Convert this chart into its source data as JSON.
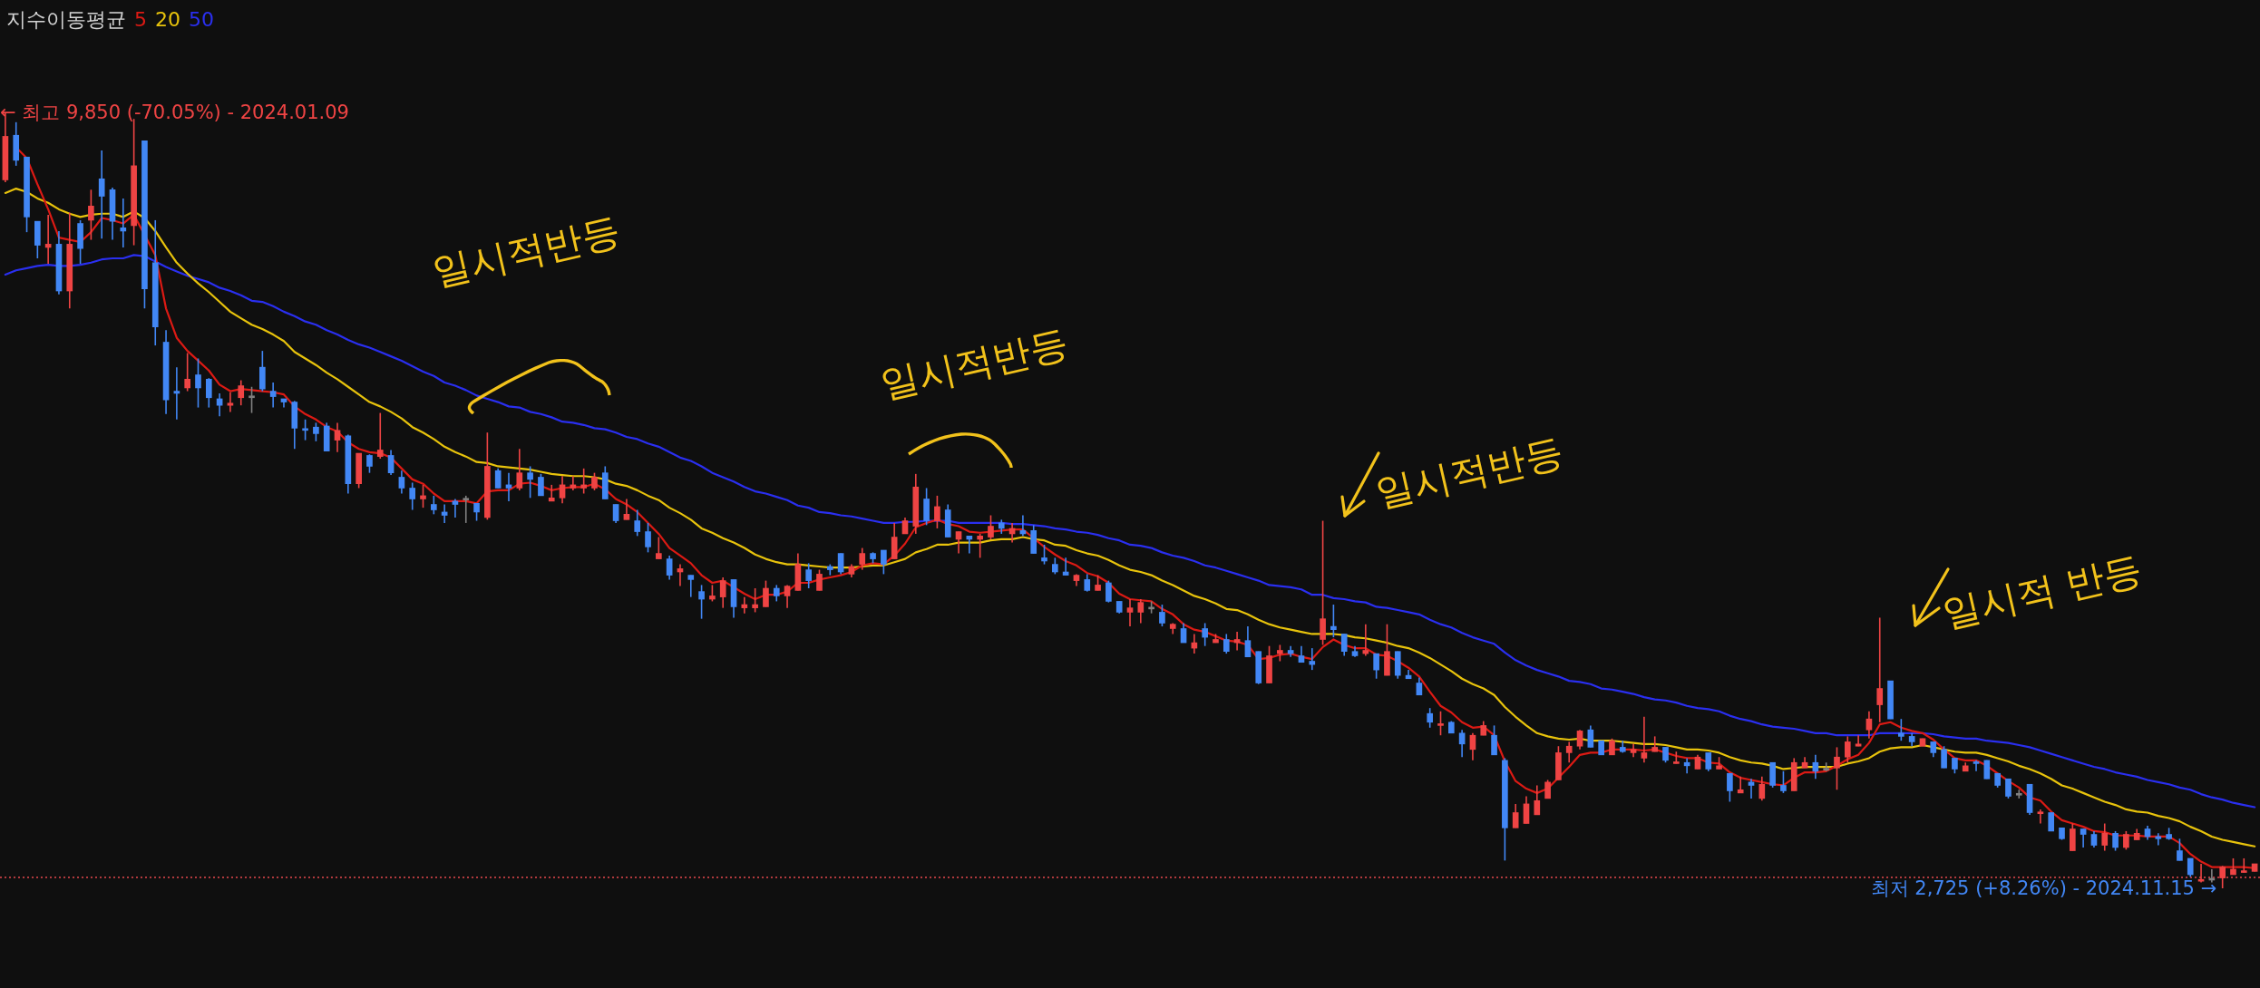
{
  "chart_data": {
    "type": "candlestick",
    "legend_title": "지수이동평균",
    "marker": "none",
    "grid": false,
    "tick_labels": false,
    "categories": [
      null,
      null,
      null,
      null,
      null,
      null,
      null,
      null,
      null,
      null,
      null,
      null,
      null,
      null,
      null,
      null,
      null,
      null,
      null,
      null,
      null,
      null,
      null,
      null,
      null,
      null,
      null,
      null,
      null,
      null,
      null,
      null,
      null,
      null,
      null,
      null,
      null,
      null,
      null,
      null,
      null,
      null,
      null,
      null,
      null,
      null,
      null,
      null,
      null,
      null,
      null,
      null,
      null,
      null,
      null,
      null,
      null,
      null,
      null,
      null,
      null,
      null,
      null,
      null,
      null,
      null,
      null,
      null,
      null,
      null,
      null,
      null,
      null,
      null,
      null,
      null,
      null,
      null,
      null,
      null,
      null,
      null,
      null,
      null,
      null,
      null,
      null,
      null,
      null,
      null,
      null,
      null,
      null,
      null,
      null,
      null,
      null,
      null,
      null,
      null,
      null,
      null,
      null,
      null,
      null,
      null,
      null,
      null,
      null,
      null,
      null,
      null,
      null,
      null,
      null,
      null,
      null,
      null,
      null,
      null,
      null,
      null,
      null,
      null,
      null,
      null,
      null,
      null,
      null,
      null,
      null,
      null,
      null,
      null,
      null,
      null,
      null,
      null,
      null,
      null,
      null,
      null,
      null,
      null,
      null,
      null,
      null,
      null,
      null,
      null,
      null,
      null,
      null,
      null,
      null,
      null,
      null,
      null,
      null,
      null,
      null,
      null,
      null,
      null,
      null,
      null,
      null,
      null,
      null,
      null,
      null,
      null,
      null,
      null,
      null,
      null,
      null,
      null,
      null,
      null,
      null,
      null,
      null,
      null,
      null,
      null,
      null,
      null,
      null,
      null,
      null,
      null,
      null,
      null,
      null,
      null,
      null,
      null,
      null,
      null,
      null,
      null,
      null,
      null,
      null,
      null,
      null,
      null,
      null,
      null,
      null
    ],
    "ohlc": [
      [
        9230,
        9850,
        9210,
        9630
      ],
      [
        9640,
        9760,
        9360,
        9410
      ],
      [
        9440,
        9440,
        8750,
        8890
      ],
      [
        8850,
        8850,
        8510,
        8630
      ],
      [
        8610,
        8910,
        8460,
        8640
      ],
      [
        8640,
        8760,
        8180,
        8210
      ],
      [
        8210,
        8930,
        8050,
        8640
      ],
      [
        8830,
        8860,
        8460,
        8600
      ],
      [
        8860,
        9140,
        8680,
        8990
      ],
      [
        9240,
        9500,
        8690,
        9080
      ],
      [
        9140,
        9160,
        8680,
        8850
      ],
      [
        8790,
        9060,
        8610,
        8760
      ],
      [
        8810,
        9790,
        8630,
        9360
      ],
      [
        9590,
        9590,
        8050,
        8230
      ],
      [
        8470,
        8860,
        7710,
        7880
      ],
      [
        7740,
        7850,
        7080,
        7210
      ],
      [
        7290,
        7510,
        7030,
        7270
      ],
      [
        7320,
        7640,
        7290,
        7400
      ],
      [
        7440,
        7590,
        7140,
        7320
      ],
      [
        7400,
        7410,
        7140,
        7230
      ],
      [
        7220,
        7270,
        7060,
        7160
      ],
      [
        7160,
        7280,
        7100,
        7180
      ],
      [
        7230,
        7390,
        7160,
        7340
      ],
      [
        7230,
        7330,
        7090,
        7230
      ],
      [
        7510,
        7660,
        7290,
        7310
      ],
      [
        7290,
        7370,
        7140,
        7240
      ],
      [
        7220,
        7220,
        7140,
        7190
      ],
      [
        7190,
        7200,
        6760,
        6950
      ],
      [
        6940,
        7030,
        6840,
        6930
      ],
      [
        6960,
        7000,
        6830,
        6900
      ],
      [
        6970,
        7000,
        6740,
        6740
      ],
      [
        6840,
        7000,
        6730,
        6930
      ],
      [
        6880,
        6890,
        6350,
        6440
      ],
      [
        6440,
        6720,
        6400,
        6720
      ],
      [
        6700,
        6710,
        6540,
        6600
      ],
      [
        6690,
        7090,
        6670,
        6750
      ],
      [
        6700,
        6750,
        6520,
        6540
      ],
      [
        6500,
        6560,
        6350,
        6400
      ],
      [
        6400,
        6450,
        6200,
        6300
      ],
      [
        6300,
        6430,
        6220,
        6330
      ],
      [
        6250,
        6330,
        6160,
        6200
      ],
      [
        6180,
        6250,
        6080,
        6150
      ],
      [
        6280,
        6300,
        6130,
        6250
      ],
      [
        6290,
        6330,
        6080,
        6290
      ],
      [
        6260,
        6260,
        6100,
        6180
      ],
      [
        6130,
        6910,
        6110,
        6600
      ],
      [
        6560,
        6580,
        6400,
        6400
      ],
      [
        6430,
        6540,
        6280,
        6400
      ],
      [
        6400,
        6760,
        6380,
        6540
      ],
      [
        6540,
        6600,
        6310,
        6480
      ],
      [
        6500,
        6530,
        6330,
        6330
      ],
      [
        6280,
        6430,
        6280,
        6310
      ],
      [
        6310,
        6510,
        6260,
        6430
      ],
      [
        6400,
        6510,
        6380,
        6430
      ],
      [
        6400,
        6580,
        6350,
        6430
      ],
      [
        6400,
        6540,
        6380,
        6500
      ],
      [
        6540,
        6600,
        6300,
        6300
      ],
      [
        6250,
        6250,
        6080,
        6100
      ],
      [
        6110,
        6300,
        6110,
        6160
      ],
      [
        6100,
        6200,
        5960,
        6000
      ],
      [
        6000,
        6080,
        5810,
        5860
      ],
      [
        5750,
        5950,
        5750,
        5800
      ],
      [
        5750,
        5780,
        5560,
        5600
      ],
      [
        5630,
        5700,
        5500,
        5660
      ],
      [
        5600,
        5600,
        5400,
        5560
      ],
      [
        5450,
        5510,
        5200,
        5380
      ],
      [
        5380,
        5510,
        5360,
        5410
      ],
      [
        5400,
        5580,
        5300,
        5550
      ],
      [
        5560,
        5560,
        5210,
        5310
      ],
      [
        5300,
        5400,
        5250,
        5330
      ],
      [
        5300,
        5480,
        5260,
        5330
      ],
      [
        5310,
        5550,
        5310,
        5480
      ],
      [
        5480,
        5510,
        5360,
        5410
      ],
      [
        5410,
        5510,
        5300,
        5500
      ],
      [
        5460,
        5800,
        5460,
        5700
      ],
      [
        5650,
        5710,
        5480,
        5550
      ],
      [
        5460,
        5650,
        5460,
        5610
      ],
      [
        5680,
        5700,
        5600,
        5650
      ],
      [
        5800,
        5800,
        5610,
        5630
      ],
      [
        5610,
        5700,
        5580,
        5680
      ],
      [
        5700,
        5850,
        5650,
        5800
      ],
      [
        5800,
        5810,
        5710,
        5750
      ],
      [
        5830,
        5830,
        5610,
        5700
      ],
      [
        5750,
        6080,
        5750,
        5950
      ],
      [
        5980,
        6130,
        5980,
        6100
      ],
      [
        6050,
        6530,
        5980,
        6410
      ],
      [
        6300,
        6400,
        6060,
        6100
      ],
      [
        6100,
        6330,
        6030,
        6230
      ],
      [
        6200,
        6250,
        5950,
        5950
      ],
      [
        5930,
        6000,
        5800,
        6000
      ],
      [
        5960,
        5960,
        5800,
        5930
      ],
      [
        5930,
        5980,
        5760,
        5960
      ],
      [
        5950,
        6150,
        5930,
        6050
      ],
      [
        6080,
        6110,
        5980,
        6030
      ],
      [
        5980,
        6080,
        5900,
        6030
      ],
      [
        6010,
        6150,
        5960,
        5980
      ],
      [
        6010,
        6060,
        5800,
        5800
      ],
      [
        5760,
        5880,
        5700,
        5730
      ],
      [
        5700,
        5760,
        5610,
        5630
      ],
      [
        5630,
        5760,
        5600,
        5600
      ],
      [
        5550,
        5610,
        5500,
        5600
      ],
      [
        5560,
        5610,
        5450,
        5460
      ],
      [
        5460,
        5600,
        5460,
        5510
      ],
      [
        5530,
        5550,
        5350,
        5360
      ],
      [
        5360,
        5360,
        5250,
        5260
      ],
      [
        5260,
        5380,
        5130,
        5300
      ],
      [
        5260,
        5380,
        5160,
        5350
      ],
      [
        5290,
        5360,
        5250,
        5290
      ],
      [
        5260,
        5330,
        5130,
        5160
      ],
      [
        5110,
        5160,
        5060,
        5150
      ],
      [
        5110,
        5160,
        4980,
        4980
      ],
      [
        4930,
        5060,
        4880,
        4980
      ],
      [
        5110,
        5160,
        4950,
        5030
      ],
      [
        4980,
        5060,
        4980,
        5010
      ],
      [
        5010,
        5060,
        4880,
        4900
      ],
      [
        4980,
        5080,
        4910,
        5010
      ],
      [
        5000,
        5130,
        4850,
        4850
      ],
      [
        4900,
        4900,
        4600,
        4610
      ],
      [
        4610,
        4950,
        4610,
        4860
      ],
      [
        4880,
        4960,
        4810,
        4910
      ],
      [
        4910,
        4950,
        4850,
        4880
      ],
      [
        4860,
        4950,
        4800,
        4800
      ],
      [
        4810,
        4930,
        4730,
        4780
      ],
      [
        5010,
        6100,
        4960,
        5200
      ],
      [
        5130,
        5330,
        5030,
        5100
      ],
      [
        5060,
        5060,
        4860,
        4900
      ],
      [
        4900,
        4950,
        4850,
        4860
      ],
      [
        4880,
        5150,
        4860,
        4910
      ],
      [
        4880,
        4880,
        4650,
        4730
      ],
      [
        4680,
        5150,
        4680,
        4900
      ],
      [
        4900,
        4900,
        4650,
        4680
      ],
      [
        4680,
        4730,
        4650,
        4650
      ],
      [
        4610,
        4660,
        4500,
        4500
      ],
      [
        4330,
        4380,
        4200,
        4250
      ],
      [
        4220,
        4350,
        4130,
        4230
      ],
      [
        4250,
        4260,
        4150,
        4150
      ],
      [
        4150,
        4180,
        3930,
        4050
      ],
      [
        4000,
        4150,
        3900,
        4130
      ],
      [
        4130,
        4260,
        4130,
        4220
      ],
      [
        4130,
        4220,
        3950,
        3950
      ],
      [
        3900,
        3920,
        2980,
        3280
      ],
      [
        3280,
        3500,
        3280,
        3420
      ],
      [
        3320,
        3570,
        3320,
        3500
      ],
      [
        3400,
        3670,
        3400,
        3530
      ],
      [
        3550,
        3720,
        3550,
        3700
      ],
      [
        3720,
        4030,
        3720,
        3970
      ],
      [
        3970,
        4070,
        3880,
        4030
      ],
      [
        4030,
        4180,
        4000,
        4170
      ],
      [
        4180,
        4220,
        4020,
        4020
      ],
      [
        4080,
        4080,
        3950,
        3950
      ],
      [
        3950,
        4100,
        3950,
        4080
      ],
      [
        4020,
        4080,
        3970,
        3980
      ],
      [
        3970,
        4050,
        3930,
        4000
      ],
      [
        3920,
        4300,
        3880,
        3970
      ],
      [
        3980,
        4120,
        3980,
        4020
      ],
      [
        4020,
        4020,
        3880,
        3900
      ],
      [
        3870,
        3980,
        3870,
        3880
      ],
      [
        3880,
        3920,
        3780,
        3850
      ],
      [
        3820,
        3950,
        3820,
        3930
      ],
      [
        3970,
        3970,
        3800,
        3820
      ],
      [
        3820,
        3930,
        3820,
        3850
      ],
      [
        3780,
        3780,
        3520,
        3620
      ],
      [
        3600,
        3750,
        3600,
        3630
      ],
      [
        3700,
        3730,
        3550,
        3670
      ],
      [
        3550,
        3750,
        3530,
        3680
      ],
      [
        3880,
        3880,
        3650,
        3670
      ],
      [
        3670,
        3800,
        3600,
        3620
      ],
      [
        3620,
        3920,
        3620,
        3880
      ],
      [
        3830,
        3930,
        3830,
        3880
      ],
      [
        3880,
        3950,
        3730,
        3800
      ],
      [
        3810,
        3880,
        3800,
        3810
      ],
      [
        3830,
        4020,
        3630,
        3930
      ],
      [
        3930,
        4120,
        3880,
        4070
      ],
      [
        4030,
        4130,
        4030,
        4050
      ],
      [
        4180,
        4350,
        4100,
        4280
      ],
      [
        4410,
        5210,
        4250,
        4560
      ],
      [
        4630,
        4630,
        4280,
        4280
      ],
      [
        4150,
        4280,
        4080,
        4120
      ],
      [
        4120,
        4150,
        4030,
        4070
      ],
      [
        4030,
        4100,
        4030,
        4100
      ],
      [
        4070,
        4070,
        3930,
        3970
      ],
      [
        4000,
        4030,
        3830,
        3830
      ],
      [
        3920,
        3920,
        3780,
        3820
      ],
      [
        3800,
        3880,
        3800,
        3850
      ],
      [
        3880,
        3900,
        3800,
        3870
      ],
      [
        3900,
        3900,
        3730,
        3730
      ],
      [
        3780,
        3780,
        3650,
        3670
      ],
      [
        3730,
        3730,
        3550,
        3570
      ],
      [
        3580,
        3630,
        3550,
        3580
      ],
      [
        3680,
        3680,
        3400,
        3420
      ],
      [
        3410,
        3450,
        3320,
        3420
      ],
      [
        3420,
        3420,
        3250,
        3250
      ],
      [
        3280,
        3280,
        3170,
        3180
      ],
      [
        3070,
        3320,
        3070,
        3270
      ],
      [
        3270,
        3270,
        3100,
        3220
      ],
      [
        3220,
        3250,
        3100,
        3120
      ],
      [
        3120,
        3320,
        3070,
        3230
      ],
      [
        3230,
        3250,
        3070,
        3100
      ],
      [
        3100,
        3250,
        3080,
        3220
      ],
      [
        3170,
        3270,
        3170,
        3230
      ],
      [
        3270,
        3300,
        3170,
        3200
      ],
      [
        3200,
        3230,
        3120,
        3180
      ],
      [
        3220,
        3280,
        3170,
        3180
      ],
      [
        3070,
        3180,
        2980,
        2980
      ],
      [
        3000,
        3000,
        2830,
        2850
      ],
      [
        2790,
        2950,
        2780,
        2800
      ],
      [
        2800,
        2900,
        2780,
        2800
      ],
      [
        2820,
        2930,
        2725,
        2920
      ],
      [
        2850,
        3000,
        2850,
        2900
      ],
      [
        2870,
        3000,
        2870,
        2880
      ],
      [
        2880,
        2950,
        2880,
        2950
      ]
    ],
    "colors": [
      "#ef4444",
      "#4287f5",
      "#4287f5",
      "#4287f5",
      "#ef4444",
      "#4287f5",
      "#ef4444",
      "#4287f5",
      "#ef4444",
      "#4287f5",
      "#4287f5",
      "#4287f5",
      "#ef4444",
      "#4287f5",
      "#4287f5",
      "#4287f5",
      "#4287f5",
      "#ef4444",
      "#4287f5",
      "#4287f5",
      "#4287f5",
      "#ef4444",
      "#ef4444",
      "#808080",
      "#4287f5",
      "#4287f5",
      "#4287f5",
      "#4287f5",
      "#4287f5",
      "#4287f5",
      "#4287f5",
      "#ef4444",
      "#4287f5",
      "#ef4444",
      "#4287f5",
      "#ef4444",
      "#4287f5",
      "#4287f5",
      "#4287f5",
      "#ef4444",
      "#4287f5",
      "#4287f5",
      "#4287f5",
      "#808080",
      "#4287f5",
      "#ef4444",
      "#4287f5",
      "#4287f5",
      "#ef4444",
      "#4287f5",
      "#4287f5",
      "#ef4444",
      "#ef4444",
      "#ef4444",
      "#ef4444",
      "#ef4444",
      "#4287f5",
      "#4287f5",
      "#ef4444",
      "#4287f5",
      "#4287f5",
      "#ef4444",
      "#4287f5",
      "#ef4444",
      "#4287f5",
      "#4287f5",
      "#ef4444",
      "#ef4444",
      "#4287f5",
      "#ef4444",
      "#ef4444",
      "#ef4444",
      "#4287f5",
      "#ef4444",
      "#ef4444",
      "#4287f5",
      "#ef4444",
      "#4287f5",
      "#4287f5",
      "#ef4444",
      "#ef4444",
      "#4287f5",
      "#4287f5",
      "#ef4444",
      "#ef4444",
      "#ef4444",
      "#4287f5",
      "#ef4444",
      "#4287f5",
      "#ef4444",
      "#4287f5",
      "#ef4444",
      "#ef4444",
      "#4287f5",
      "#ef4444",
      "#4287f5",
      "#4287f5",
      "#4287f5",
      "#4287f5",
      "#4287f5",
      "#ef4444",
      "#4287f5",
      "#ef4444",
      "#4287f5",
      "#4287f5",
      "#ef4444",
      "#ef4444",
      "#808080",
      "#4287f5",
      "#ef4444",
      "#4287f5",
      "#ef4444",
      "#4287f5",
      "#ef4444",
      "#4287f5",
      "#ef4444",
      "#4287f5",
      "#4287f5",
      "#ef4444",
      "#ef4444",
      "#4287f5",
      "#4287f5",
      "#4287f5",
      "#ef4444",
      "#4287f5",
      "#4287f5",
      "#4287f5",
      "#ef4444",
      "#4287f5",
      "#ef4444",
      "#4287f5",
      "#4287f5",
      "#4287f5",
      "#4287f5",
      "#ef4444",
      "#4287f5",
      "#4287f5",
      "#ef4444",
      "#ef4444",
      "#4287f5",
      "#4287f5",
      "#ef4444",
      "#ef4444",
      "#ef4444",
      "#ef4444",
      "#ef4444",
      "#ef4444",
      "#ef4444",
      "#4287f5",
      "#4287f5",
      "#ef4444",
      "#4287f5",
      "#ef4444",
      "#ef4444",
      "#ef4444",
      "#4287f5",
      "#ef4444",
      "#4287f5",
      "#ef4444",
      "#4287f5",
      "#ef4444",
      "#4287f5",
      "#ef4444",
      "#4287f5",
      "#ef4444",
      "#4287f5",
      "#4287f5",
      "#ef4444",
      "#ef4444",
      "#4287f5",
      "#808080",
      "#ef4444",
      "#ef4444",
      "#ef4444",
      "#ef4444",
      "#ef4444",
      "#4287f5",
      "#4287f5",
      "#4287f5",
      "#ef4444",
      "#4287f5",
      "#4287f5",
      "#4287f5",
      "#ef4444",
      "#4287f5",
      "#4287f5",
      "#4287f5",
      "#4287f5",
      "#808080",
      "#4287f5",
      "#ef4444",
      "#4287f5",
      "#4287f5",
      "#ef4444",
      "#4287f5",
      "#4287f5",
      "#ef4444",
      "#4287f5",
      "#ef4444",
      "#ef4444",
      "#4287f5",
      "#4287f5",
      "#4287f5",
      "#4287f5",
      "#4287f5",
      "#ef4444",
      "#808080",
      "#ef4444",
      "#ef4444",
      "#ef4444",
      "#ef4444"
    ],
    "series": [
      {
        "type": "line",
        "name": "5",
        "color": "#dc1a14",
        "values": [
          null,
          9530,
          9430,
          9190,
          8960,
          8700,
          8680,
          8660,
          8750,
          8880,
          8860,
          8830,
          8910,
          null,
          8540,
          8050,
          7780,
          7660,
          7570,
          7480,
          7350,
          7290,
          7310,
          7300,
          7290,
          7280,
          7260,
          7150,
          7080,
          7030,
          6960,
          6920,
          6820,
          6760,
          6730,
          6720,
          6680,
          6580,
          6480,
          6440,
          6350,
          6280,
          6280,
          6280,
          6260,
          6370,
          6380,
          6380,
          6440,
          6450,
          6420,
          6380,
          6400,
          6410,
          6410,
          6440,
          6390,
          6300,
          6250,
          6180,
          6080,
          5980,
          5850,
          5780,
          5710,
          5600,
          5530,
          5550,
          5490,
          5430,
          5380,
          5420,
          5420,
          5450,
          5530,
          5530,
          5560,
          5580,
          5600,
          5630,
          5690,
          5710,
          5700,
          5780,
          5890,
          6040,
          6080,
          6110,
          6070,
          6050,
          6000,
          5990,
          6000,
          6010,
          6020,
          6020,
          5940,
          5860,
          5790,
          5730,
          5690,
          5620,
          5590,
          5530,
          5430,
          5380,
          5370,
          5360,
          5290,
          5240,
          5150,
          5100,
          5080,
          5040,
          5000,
          4990,
          4960,
          4830,
          4840,
          4870,
          4880,
          4850,
          4830,
          4940,
          5010,
          4960,
          4930,
          4930,
          4870,
          4860,
          4810,
          4750,
          4670,
          4530,
          4400,
          4340,
          4250,
          4200,
          4210,
          4130,
          3890,
          3710,
          3640,
          3600,
          3640,
          3740,
          3840,
          3950,
          3970,
          3970,
          4000,
          4000,
          4000,
          3990,
          4000,
          3970,
          3940,
          3920,
          3920,
          3880,
          3870,
          3790,
          3740,
          3720,
          3700,
          3680,
          3670,
          3740,
          3790,
          3790,
          3800,
          3850,
          3910,
          3950,
          4060,
          4230,
          4250,
          4200,
          4170,
          4150,
          4090,
          4000,
          3920,
          3900,
          3900,
          3850,
          3780,
          3710,
          3650,
          3560,
          3530,
          3430,
          3350,
          3320,
          3290,
          3250,
          3240,
          3210,
          3210,
          3210,
          3200,
          3200,
          3200,
          3140,
          3040,
          2970,
          2920,
          2920,
          2920,
          2920,
          2910
        ]
      },
      {
        "type": "line",
        "name": "20",
        "color": "#e8c30c",
        "values": [
          9110,
          9150,
          9120,
          9060,
          9020,
          8960,
          8920,
          8890,
          8910,
          8920,
          8920,
          8890,
          8940,
          8880,
          8760,
          8610,
          8470,
          8370,
          8280,
          8200,
          8110,
          8020,
          7960,
          7900,
          7860,
          7810,
          7750,
          7650,
          7590,
          7530,
          7460,
          7400,
          7330,
          7260,
          7190,
          7150,
          7100,
          7040,
          6960,
          6910,
          6850,
          6780,
          6730,
          6690,
          6640,
          6630,
          6600,
          6590,
          6580,
          6570,
          6550,
          6530,
          6520,
          6510,
          6510,
          6500,
          6480,
          6440,
          6420,
          6380,
          6330,
          6290,
          6220,
          6170,
          6110,
          6030,
          5990,
          5940,
          5900,
          5850,
          5790,
          5750,
          5720,
          5700,
          5700,
          5690,
          5680,
          5670,
          5670,
          5670,
          5680,
          5690,
          5690,
          5720,
          5750,
          5810,
          5840,
          5880,
          5880,
          5900,
          5900,
          5900,
          5920,
          5930,
          5930,
          5950,
          5930,
          5920,
          5880,
          5870,
          5830,
          5800,
          5780,
          5740,
          5690,
          5650,
          5630,
          5600,
          5550,
          5510,
          5460,
          5410,
          5380,
          5340,
          5290,
          5280,
          5240,
          5190,
          5150,
          5120,
          5100,
          5080,
          5060,
          5060,
          5060,
          5050,
          5030,
          5020,
          5000,
          4980,
          4950,
          4930,
          4890,
          4840,
          4780,
          4720,
          4650,
          4600,
          4560,
          4500,
          4390,
          4300,
          4220,
          4150,
          4120,
          4100,
          4090,
          4100,
          4080,
          4080,
          4080,
          4070,
          4060,
          4050,
          4050,
          4040,
          4020,
          4000,
          4000,
          3990,
          3970,
          3930,
          3900,
          3880,
          3870,
          3850,
          3820,
          3830,
          3840,
          3840,
          3840,
          3840,
          3870,
          3890,
          3920,
          3980,
          4010,
          4020,
          4020,
          4040,
          4020,
          4000,
          3980,
          3970,
          3970,
          3950,
          3920,
          3890,
          3850,
          3820,
          3780,
          3730,
          3670,
          3640,
          3600,
          3560,
          3520,
          3490,
          3450,
          3430,
          3420,
          3390,
          3370,
          3340,
          3290,
          3250,
          3200,
          3170,
          3150,
          3130,
          3110
        ]
      },
      {
        "type": "line",
        "name": "50",
        "color": "#2a2ff0",
        "values": [
          8360,
          8400,
          8420,
          8440,
          8450,
          8440,
          8440,
          8450,
          8470,
          8500,
          8510,
          8510,
          8540,
          8530,
          8480,
          8430,
          8390,
          8350,
          8320,
          8290,
          8240,
          8210,
          8170,
          8120,
          8110,
          8070,
          8020,
          7980,
          7930,
          7900,
          7850,
          7810,
          7760,
          7720,
          7690,
          7650,
          7610,
          7570,
          7520,
          7470,
          7430,
          7370,
          7340,
          7300,
          7250,
          7220,
          7190,
          7150,
          7140,
          7100,
          7080,
          7050,
          7010,
          7000,
          6980,
          6950,
          6940,
          6910,
          6870,
          6850,
          6810,
          6780,
          6730,
          6680,
          6650,
          6600,
          6540,
          6500,
          6460,
          6410,
          6370,
          6350,
          6320,
          6290,
          6240,
          6220,
          6180,
          6170,
          6150,
          6140,
          6120,
          6100,
          6080,
          6080,
          6090,
          6090,
          6100,
          null,
          6100,
          6080,
          6080,
          6080,
          6080,
          6080,
          6070,
          6070,
          6060,
          6050,
          6030,
          6020,
          6000,
          5990,
          5970,
          5940,
          5920,
          5880,
          5870,
          5850,
          5810,
          5780,
          5760,
          5730,
          5690,
          5670,
          5640,
          5610,
          5580,
          5550,
          5510,
          5500,
          5490,
          5470,
          5420,
          5420,
          5390,
          5380,
          5360,
          5350,
          5310,
          5300,
          5280,
          5260,
          5240,
          5190,
          5150,
          5120,
          5070,
          5030,
          5000,
          4970,
          4890,
          4820,
          4770,
          4730,
          4700,
          4670,
          4630,
          4620,
          4600,
          4560,
          4550,
          4530,
          4510,
          4480,
          4460,
          4450,
          4430,
          4400,
          4380,
          4370,
          4350,
          4310,
          4280,
          4260,
          4230,
          4210,
          4200,
          4190,
          4170,
          4150,
          4150,
          4130,
          4130,
          4130,
          4130,
          4150,
          4150,
          4150,
          4150,
          4150,
          4140,
          4120,
          4110,
          4100,
          4100,
          4080,
          4070,
          4060,
          4040,
          4020,
          3990,
          3960,
          3930,
          3900,
          3870,
          3840,
          3820,
          3790,
          3770,
          3750,
          3720,
          3700,
          3680,
          3650,
          3630,
          3590,
          3560,
          3540,
          3510,
          3490,
          3470
        ]
      }
    ],
    "ref_lines": [
      {
        "axis": "y",
        "value": 2825,
        "color": "#e5484d",
        "line_style": "dotted"
      }
    ],
    "annotations": [
      "← 최고 9,850 (-70.05%) - 2024.01.09",
      "일시적반등",
      "일시적반등",
      "일시적반등",
      "일시적 반등",
      "최저 2,725 (+8.26%) - 2024.11.15 →"
    ]
  }
}
